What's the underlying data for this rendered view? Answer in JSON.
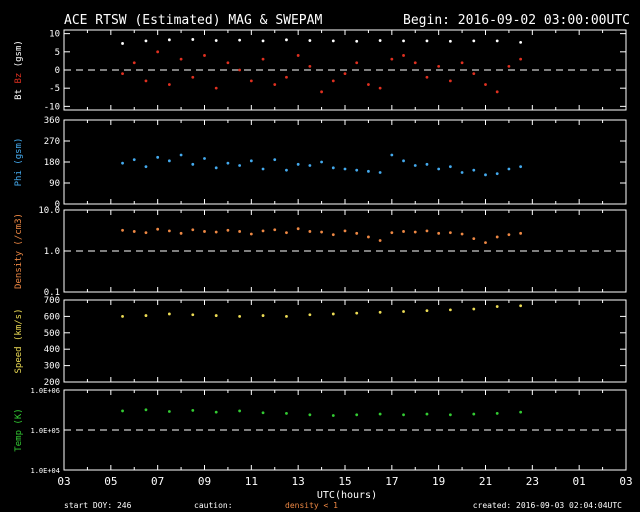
{
  "header": {
    "title": "ACE RTSW (Estimated) MAG & SWEPAM",
    "begin": "Begin: 2016-09-02 03:00:00UTC"
  },
  "footer": {
    "start_doy": "start DOY: 246",
    "caution": "caution:",
    "caution_note": "density < 1",
    "created": "created: 2016-09-03 02:04:04UTC"
  },
  "x_axis": {
    "label": "UTC(hours)",
    "range_hours": [
      3,
      27
    ],
    "ticks": [
      "03",
      "05",
      "07",
      "09",
      "11",
      "13",
      "15",
      "17",
      "19",
      "21",
      "23",
      "01",
      "03"
    ]
  },
  "colors": {
    "bt": "#ffffff",
    "bz": "#e03020",
    "phi": "#44aaee",
    "density": "#ee8844",
    "speed": "#eedd55",
    "temp": "#33cc33",
    "axes": "#ffffff"
  },
  "chart_data": [
    {
      "type": "scatter",
      "ylabel_parts": [
        "Bt",
        "Bz",
        "(gsm)"
      ],
      "ylim": [
        -11,
        11
      ],
      "yscale": "linear",
      "yticks": [
        "10",
        "5",
        "0",
        "-5",
        "-10"
      ],
      "ytick_values": [
        10,
        5,
        0,
        -5,
        -10
      ],
      "ref_line": 0,
      "series": [
        {
          "name": "Bt",
          "color_key": "bt",
          "x": [
            5.5,
            6.5,
            7.5,
            8.5,
            9.5,
            10.5,
            11.5,
            12.5,
            13.5,
            14.5,
            15.5,
            16.5,
            17.5,
            18.5,
            19.5,
            20.5,
            21.5,
            22.5
          ],
          "y": [
            7.3,
            8.0,
            8.3,
            8.4,
            8.1,
            8.2,
            8.0,
            8.3,
            8.1,
            8.0,
            7.9,
            8.1,
            8.0,
            8.0,
            7.9,
            8.0,
            8.0,
            7.6
          ]
        },
        {
          "name": "Bz",
          "color_key": "bz",
          "x": [
            5.5,
            6.0,
            6.5,
            7.0,
            7.5,
            8.0,
            8.5,
            9.0,
            9.5,
            10.0,
            10.5,
            11.0,
            11.5,
            12.0,
            12.5,
            13.0,
            13.5,
            14.0,
            14.5,
            15.0,
            15.5,
            16.0,
            16.5,
            17.0,
            17.5,
            18.0,
            18.5,
            19.0,
            19.5,
            20.0,
            20.5,
            21.0,
            21.5,
            22.0,
            22.5
          ],
          "y": [
            -1,
            2,
            -3,
            5,
            -4,
            3,
            -2,
            4,
            -5,
            2,
            0,
            -3,
            3,
            -4,
            -2,
            4,
            1,
            -6,
            -3,
            -1,
            2,
            -4,
            -5,
            3,
            4,
            2,
            -2,
            1,
            -3,
            2,
            -1,
            -4,
            -6,
            1,
            3
          ]
        }
      ]
    },
    {
      "type": "scatter",
      "ylabel_parts": [
        "Phi",
        "(gsm)"
      ],
      "ylim": [
        0,
        360
      ],
      "yscale": "linear",
      "yticks": [
        "360",
        "270",
        "180",
        "90",
        "0"
      ],
      "ytick_values": [
        360,
        270,
        180,
        90,
        0
      ],
      "series": [
        {
          "name": "Phi",
          "color_key": "phi",
          "x": [
            5.5,
            6.0,
            6.5,
            7.0,
            7.5,
            8.0,
            8.5,
            9.0,
            9.5,
            10.0,
            10.5,
            11.0,
            11.5,
            12.0,
            12.5,
            13.0,
            13.5,
            14.0,
            14.5,
            15.0,
            15.5,
            16.0,
            16.5,
            17.0,
            17.5,
            18.0,
            18.5,
            19.0,
            19.5,
            20.0,
            20.5,
            21.0,
            21.5,
            22.0,
            22.5
          ],
          "y": [
            175,
            190,
            160,
            200,
            185,
            210,
            170,
            195,
            155,
            175,
            165,
            185,
            150,
            190,
            145,
            170,
            165,
            180,
            155,
            150,
            145,
            140,
            135,
            210,
            185,
            165,
            170,
            150,
            160,
            135,
            145,
            125,
            130,
            150,
            160
          ]
        }
      ]
    },
    {
      "type": "scatter",
      "ylabel_parts": [
        "Density",
        "(/cm3)"
      ],
      "ylim": [
        0.1,
        10
      ],
      "yscale": "log",
      "yticks": [
        "10.0",
        "1.0",
        "0.1"
      ],
      "ytick_values": [
        10,
        1,
        0.1
      ],
      "ref_line": 1,
      "series": [
        {
          "name": "Density",
          "color_key": "density",
          "x": [
            5.5,
            6.0,
            6.5,
            7.0,
            7.5,
            8.0,
            8.5,
            9.0,
            9.5,
            10.0,
            10.5,
            11.0,
            11.5,
            12.0,
            12.5,
            13.0,
            13.5,
            14.0,
            14.5,
            15.0,
            15.5,
            16.0,
            16.5,
            17.0,
            17.5,
            18.0,
            18.5,
            19.0,
            19.5,
            20.0,
            20.5,
            21.0,
            21.5,
            22.0,
            22.5
          ],
          "y": [
            3.2,
            3.0,
            2.8,
            3.4,
            3.1,
            2.7,
            3.3,
            3.0,
            2.9,
            3.2,
            3.0,
            2.6,
            3.1,
            3.3,
            2.8,
            3.5,
            3.0,
            2.9,
            2.5,
            3.1,
            2.7,
            2.2,
            1.8,
            2.8,
            3.0,
            2.9,
            3.1,
            2.7,
            2.8,
            2.6,
            2.0,
            1.6,
            2.2,
            2.5,
            2.7
          ]
        }
      ]
    },
    {
      "type": "scatter",
      "ylabel_parts": [
        "Speed",
        "(km/s)"
      ],
      "ylim": [
        200,
        700
      ],
      "yscale": "linear",
      "yticks": [
        "700",
        "600",
        "500",
        "400",
        "300",
        "200"
      ],
      "ytick_values": [
        700,
        600,
        500,
        400,
        300,
        200
      ],
      "series": [
        {
          "name": "Speed",
          "color_key": "speed",
          "x": [
            5.5,
            6.5,
            7.5,
            8.5,
            9.5,
            10.5,
            11.5,
            12.5,
            13.5,
            14.5,
            15.5,
            16.5,
            17.5,
            18.5,
            19.5,
            20.5,
            21.5,
            22.5
          ],
          "y": [
            600,
            605,
            615,
            610,
            605,
            600,
            605,
            600,
            610,
            615,
            620,
            625,
            630,
            635,
            640,
            645,
            660,
            665
          ]
        }
      ]
    },
    {
      "type": "scatter",
      "ylabel_parts": [
        "Temp",
        "(K)"
      ],
      "ylim": [
        10000,
        1000000
      ],
      "yscale": "log",
      "yticks": [
        "1.0E+06",
        "1.0E+05",
        "1.0E+04"
      ],
      "ytick_values": [
        1000000,
        100000,
        10000
      ],
      "ref_line": 100000,
      "series": [
        {
          "name": "Temp",
          "color_key": "temp",
          "x": [
            5.5,
            6.5,
            7.5,
            8.5,
            9.5,
            10.5,
            11.5,
            12.5,
            13.5,
            14.5,
            15.5,
            16.5,
            17.5,
            18.5,
            19.5,
            20.5,
            21.5,
            22.5
          ],
          "y": [
            300000,
            320000,
            290000,
            310000,
            280000,
            300000,
            270000,
            260000,
            240000,
            230000,
            240000,
            250000,
            240000,
            250000,
            240000,
            250000,
            260000,
            280000
          ]
        }
      ]
    }
  ]
}
